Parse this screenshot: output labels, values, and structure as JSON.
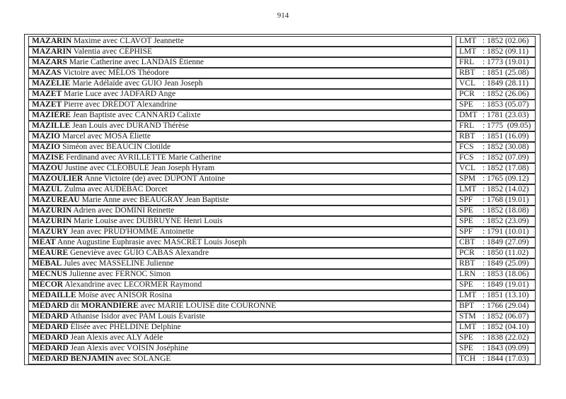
{
  "page": {
    "number": "914"
  },
  "colors": {
    "background": "#ffffff",
    "text": "#1a1a1a",
    "border": "#2e2e2e"
  },
  "table": {
    "rows": [
      {
        "segments": [
          {
            "text": "MAZARIN",
            "bold": true
          },
          {
            "text": " Maxime avec CLAVOT Jeannette",
            "bold": false
          }
        ],
        "code": "LMT",
        "ref": "1852 (02.06)"
      },
      {
        "segments": [
          {
            "text": "MAZARIN",
            "bold": true
          },
          {
            "text": " Valentia avec CÉPHISE",
            "bold": false
          }
        ],
        "code": "LMT",
        "ref": "1852 (09.11)"
      },
      {
        "segments": [
          {
            "text": "MAZARS",
            "bold": true
          },
          {
            "text": " Marie Catherine avec LANDAIS Étienne",
            "bold": false
          }
        ],
        "code": "FRL",
        "ref": "1773 (19.01)"
      },
      {
        "segments": [
          {
            "text": "MAZAS",
            "bold": true
          },
          {
            "text": " Victoire avec MÉLOS Théodore",
            "bold": false
          }
        ],
        "code": "RBT",
        "ref": "1851 (25.08)"
      },
      {
        "segments": [
          {
            "text": "MAZÉLIE",
            "bold": true
          },
          {
            "text": " Marie Adélaïde avec GUIO Jean Joseph",
            "bold": false
          }
        ],
        "code": "VCL",
        "ref": "1849 (28.11)"
      },
      {
        "segments": [
          {
            "text": "MAZET",
            "bold": true
          },
          {
            "text": " Marie Luce avec JADFARD Ange",
            "bold": false
          }
        ],
        "code": "PCR",
        "ref": "1852 (26.06)"
      },
      {
        "segments": [
          {
            "text": "MAZET",
            "bold": true
          },
          {
            "text": " Pierre avec DRÉDOT Alexandrine",
            "bold": false
          }
        ],
        "code": "SPE",
        "ref": "1853 (05.07)"
      },
      {
        "segments": [
          {
            "text": "MAZIÈRE",
            "bold": true
          },
          {
            "text": " Jean Baptiste avec CANNARD Calixte",
            "bold": false
          }
        ],
        "code": "DMT",
        "ref": "1781 (23.03)"
      },
      {
        "segments": [
          {
            "text": "MAZILLE",
            "bold": true
          },
          {
            "text": " Jean Louis avec DURAND Thérèse",
            "bold": false
          }
        ],
        "code": "FRL",
        "ref": "1775  (09.05)"
      },
      {
        "segments": [
          {
            "text": "MAZIO",
            "bold": true
          },
          {
            "text": " Marcel avec MOSA Éliette",
            "bold": false
          }
        ],
        "code": "RBT",
        "ref": "1851 (16.09)"
      },
      {
        "segments": [
          {
            "text": "MAZIO",
            "bold": true
          },
          {
            "text": " Siméon avec BEAUCIN Clotilde",
            "bold": false
          }
        ],
        "code": "FCS",
        "ref": "1852 (30.08)"
      },
      {
        "segments": [
          {
            "text": "MAZISE",
            "bold": true
          },
          {
            "text": " Ferdinand avec AVRILLETTE Marie Catherine",
            "bold": false
          }
        ],
        "code": "FCS",
        "ref": "1852 (07.09)"
      },
      {
        "segments": [
          {
            "text": "MAZOU",
            "bold": true
          },
          {
            "text": " Justine avec CLÉOBULE Jean Joseph Hyram",
            "bold": false
          }
        ],
        "code": "VCL",
        "ref": "1852 (17.08)"
      },
      {
        "segments": [
          {
            "text": "MAZOULIER",
            "bold": true
          },
          {
            "text": " Anne Victoire (de) avec DUPONT Antoine",
            "bold": false
          }
        ],
        "code": "SPM",
        "ref": "1765 (09.12)"
      },
      {
        "segments": [
          {
            "text": "MAZUL",
            "bold": true
          },
          {
            "text": " Zulma avec AUDEBAC Dorcet",
            "bold": false
          }
        ],
        "code": "LMT",
        "ref": "1852 (14.02)"
      },
      {
        "segments": [
          {
            "text": "MAZUREAU",
            "bold": true
          },
          {
            "text": " Marie Anne avec BEAUGRAY Jean Baptiste",
            "bold": false
          }
        ],
        "code": "SPF",
        "ref": "1768 (19.01)"
      },
      {
        "segments": [
          {
            "text": "MAZURIN",
            "bold": true
          },
          {
            "text": " Adrien avec DOMINI Reinette",
            "bold": false
          }
        ],
        "code": "SPE",
        "ref": "1852 (18.08)"
      },
      {
        "segments": [
          {
            "text": "MAZURIN",
            "bold": true
          },
          {
            "text": " Marie Louise avec DUBRUYNE Henri Louis",
            "bold": false
          }
        ],
        "code": "SPE",
        "ref": "1852 (23.09)"
      },
      {
        "segments": [
          {
            "text": "MAZURY",
            "bold": true
          },
          {
            "text": " Jean avec PRUD'HOMME Antoinette",
            "bold": false
          }
        ],
        "code": "SPF",
        "ref": "1791 (10.01)"
      },
      {
        "segments": [
          {
            "text": "MÉAT",
            "bold": true
          },
          {
            "text": " Anne Augustine Euphrasie avec MASCRÈT Louis Joseph",
            "bold": false
          }
        ],
        "code": "CBT",
        "ref": "1849 (27.09)"
      },
      {
        "segments": [
          {
            "text": "MÉAURE",
            "bold": true
          },
          {
            "text": " Geneviève avec GUIO CABAS Alexandre",
            "bold": false
          }
        ],
        "code": "PCR",
        "ref": "1850 (11.02)"
      },
      {
        "segments": [
          {
            "text": "MÉBAL",
            "bold": true
          },
          {
            "text": " Jules avec MASSELINE Julienne",
            "bold": false
          }
        ],
        "code": "RBT",
        "ref": "1849 (25.09)"
      },
      {
        "segments": [
          {
            "text": "MECNUS",
            "bold": true
          },
          {
            "text": " Julienne avec FERNOC Simon",
            "bold": false
          }
        ],
        "code": "LRN",
        "ref": "1853 (18.06)"
      },
      {
        "segments": [
          {
            "text": "MÉCOR",
            "bold": true
          },
          {
            "text": " Alexandrine avec LECORMER Raymond",
            "bold": false
          }
        ],
        "code": "SPE",
        "ref": "1849 (19.01)"
      },
      {
        "segments": [
          {
            "text": "MÉDAILLE",
            "bold": true
          },
          {
            "text": " Moïse avec ANISOR Rosina",
            "bold": false
          }
        ],
        "code": "LMT",
        "ref": "1851 (13.10)"
      },
      {
        "segments": [
          {
            "text": "MÉDARD",
            "bold": true
          },
          {
            "text": " dit ",
            "bold": false
          },
          {
            "text": "MORANDIÈRE",
            "bold": true
          },
          {
            "text": " avec MARIE LOUISE dite COURONNE",
            "bold": false
          }
        ],
        "code": "BPT",
        "ref": "1766 (29.04)"
      },
      {
        "segments": [
          {
            "text": "MÉDARD",
            "bold": true
          },
          {
            "text": " Athanise Isidor avec PAM Louis Évariste",
            "bold": false
          }
        ],
        "code": "STM",
        "ref": "1852 (06.07)"
      },
      {
        "segments": [
          {
            "text": "MÉDARD",
            "bold": true
          },
          {
            "text": " Élisée avec PHELDINE Delphine",
            "bold": false
          }
        ],
        "code": "LMT",
        "ref": "1852 (04.10)"
      },
      {
        "segments": [
          {
            "text": "MÉDARD",
            "bold": true
          },
          {
            "text": " Jean Alexis avec ALY Adèle",
            "bold": false
          }
        ],
        "code": "SPE",
        "ref": "1838 (22.02)"
      },
      {
        "segments": [
          {
            "text": "MÉDARD",
            "bold": true
          },
          {
            "text": " Jean Alexis avec VOISIN Joséphine",
            "bold": false
          }
        ],
        "code": "SPE",
        "ref": "1843 (09.09)"
      },
      {
        "segments": [
          {
            "text": "MÉDARD BENJAMIN",
            "bold": true
          },
          {
            "text": " avec SOLANGE",
            "bold": false
          }
        ],
        "code": "TCH",
        "ref": "1844 (17.03)"
      }
    ]
  }
}
